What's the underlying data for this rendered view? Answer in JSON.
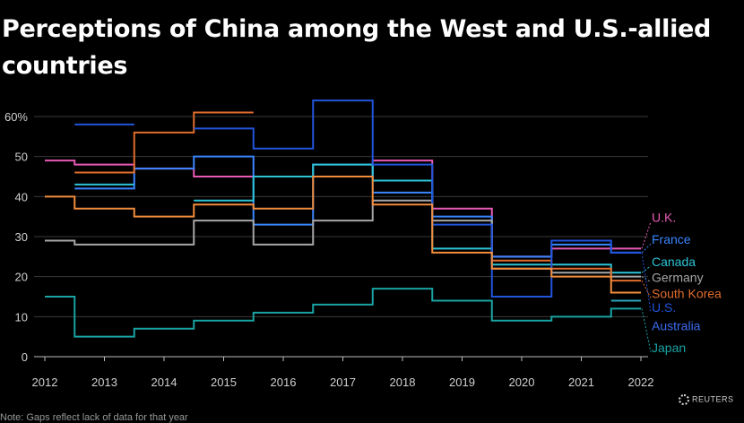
{
  "title": "Perceptions of China among the West and U.S.-allied countries",
  "note": "Note: Gaps reflect lack of data for that year",
  "logo": {
    "text": "REUTERS",
    "icon": "reuters-dot-logo-icon"
  },
  "chart_data": {
    "type": "line",
    "step": true,
    "xlim": [
      2012,
      2022
    ],
    "ylim": [
      0,
      70
    ],
    "yticks": [
      {
        "value": 0,
        "label": "0"
      },
      {
        "value": 10,
        "label": "10"
      },
      {
        "value": 20,
        "label": "20"
      },
      {
        "value": 30,
        "label": "30"
      },
      {
        "value": 40,
        "label": "40"
      },
      {
        "value": 50,
        "label": "50"
      },
      {
        "value": 60,
        "label": "60%"
      }
    ],
    "xticks": [
      2012,
      2013,
      2014,
      2015,
      2016,
      2017,
      2018,
      2019,
      2020,
      2021,
      2022
    ],
    "grid": true,
    "legend": "right",
    "series": [
      {
        "name": "U.K.",
        "color": "#e85ab6",
        "label_y": 35,
        "values": [
          49,
          48,
          47,
          45,
          45,
          45,
          49,
          37,
          25,
          27,
          27
        ]
      },
      {
        "name": "France",
        "color": "#3a86ff",
        "label_y": 29.5,
        "values": [
          null,
          42,
          47,
          50,
          33,
          48,
          41,
          35,
          25,
          28,
          26
        ]
      },
      {
        "name": "Canada",
        "color": "#2ec4d6",
        "label_y": 24,
        "values": [
          null,
          43,
          null,
          39,
          45,
          48,
          44,
          27,
          23,
          23,
          21
        ]
      },
      {
        "name": "Germany",
        "color": "#a6a6a6",
        "label_y": 20,
        "values": [
          29,
          28,
          28,
          34,
          28,
          34,
          39,
          34,
          22,
          21,
          20
        ]
      },
      {
        "name": "South Korea",
        "color": "#e06c2c",
        "label_y": 16,
        "values": [
          null,
          46,
          56,
          61,
          null,
          null,
          null,
          null,
          24,
          22,
          19
        ]
      },
      {
        "name": "U.S.",
        "color": "#2255dd",
        "label_y": 12.5,
        "values": [
          null,
          58,
          null,
          57,
          52,
          64,
          48,
          33,
          15,
          29,
          26
        ]
      },
      {
        "name": "Australia",
        "color": "#3b6cf0",
        "label_y": 8,
        "values": [
          null,
          null,
          null,
          null,
          null,
          null,
          null,
          null,
          null,
          null,
          null
        ]
      },
      {
        "name": "Japan",
        "color": "#1aa3a3",
        "label_y": 2.5,
        "values": [
          15,
          5,
          7,
          9,
          11,
          13,
          17,
          14,
          9,
          10,
          12
        ]
      },
      {
        "name": "",
        "color": "#f28c3c",
        "values": [
          40,
          37,
          35,
          38,
          37,
          45,
          38,
          26,
          22,
          20,
          16
        ]
      },
      {
        "name": "",
        "color": "#2aa7b8",
        "values": [
          null,
          null,
          null,
          null,
          null,
          null,
          null,
          null,
          null,
          null,
          14
        ]
      }
    ]
  }
}
